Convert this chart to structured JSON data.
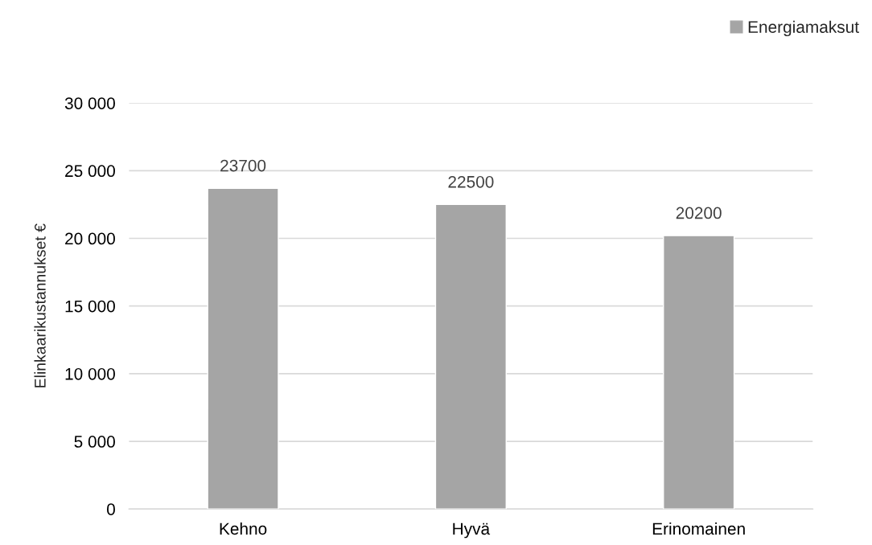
{
  "chart_data": {
    "type": "bar",
    "ylabel": "Elinkaarikustannukset €",
    "categories": [
      "Kehno",
      "Hyvä",
      "Erinomainen"
    ],
    "series": [
      {
        "name": "Energiamaksut",
        "color": "#a5a5a5",
        "values": [
          23700,
          22500,
          20200
        ]
      }
    ],
    "data_labels": true,
    "ylim": [
      0,
      30000
    ],
    "yticks": [
      {
        "value": 0,
        "label": "0"
      },
      {
        "value": 5000,
        "label": "5 000"
      },
      {
        "value": 10000,
        "label": "10 000"
      },
      {
        "value": 15000,
        "label": "15 000"
      },
      {
        "value": 20000,
        "label": "20 000"
      },
      {
        "value": 25000,
        "label": "25 000"
      },
      {
        "value": 30000,
        "label": "30 000"
      }
    ],
    "grid": "y",
    "legend": "top right"
  }
}
